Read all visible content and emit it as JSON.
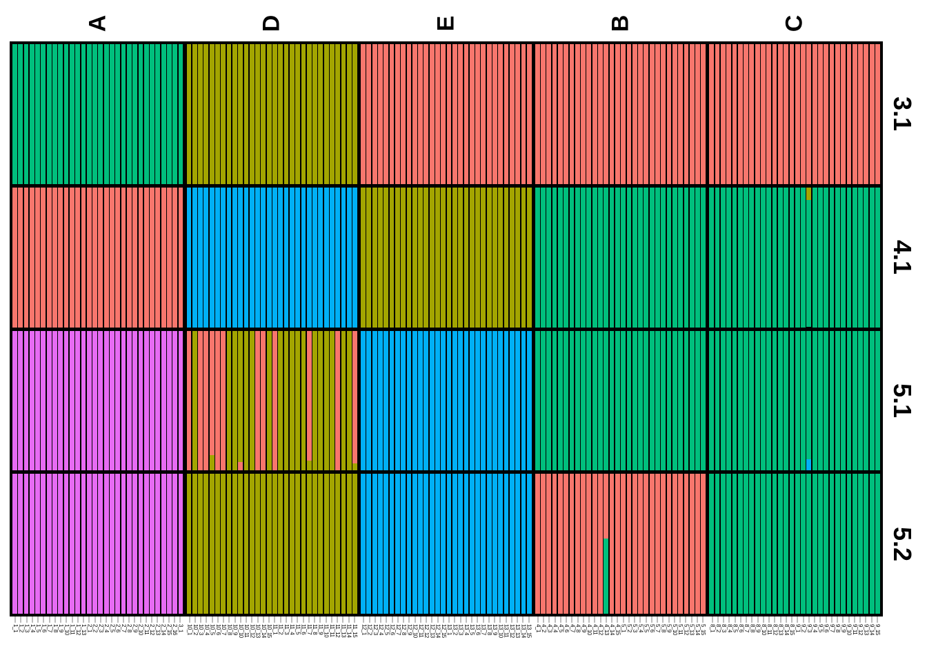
{
  "chart_data": {
    "type": "bar",
    "subtype": "stacked-admixture-structure-plot",
    "title": "",
    "groups": [
      "A",
      "D",
      "E",
      "B",
      "C"
    ],
    "runs": [
      "3.1",
      "4.1",
      "5.1",
      "5.2"
    ],
    "n_individuals_per_group": 30,
    "legend": "none",
    "palette": {
      "green": "#00BF7D",
      "salmon": "#F8766D",
      "olive": "#A3A500",
      "blue": "#00B0F6",
      "magenta": "#E76BF3"
    },
    "cells": {
      "3.1": {
        "A": "green",
        "D": "olive",
        "E": "salmon",
        "B": "salmon",
        "C": "salmon"
      },
      "4.1": {
        "A": "salmon",
        "D": "blue",
        "E": "olive",
        "B": "green",
        "C": [
          "green",
          "green",
          "green",
          "green",
          "green",
          "green",
          "green",
          "green",
          "green",
          "green",
          "green",
          "green",
          "green",
          "green",
          "green",
          "green",
          "green",
          {
            "segments": [
              [
                "olive",
                9
              ],
              [
                "green",
                91
              ]
            ]
          },
          "green",
          "green",
          "green",
          "green",
          "green",
          "green",
          "green",
          "green",
          "green",
          "green",
          "green",
          "green"
        ]
      },
      "5.1": {
        "A": "magenta",
        "D": [
          "salmon",
          "olive",
          "salmon",
          "salmon",
          {
            "segments": [
              [
                "salmon",
                89
              ],
              [
                "olive",
                11
              ]
            ]
          },
          "salmon",
          "salmon",
          "olive",
          "olive",
          {
            "segments": [
              [
                "olive",
                94
              ],
              [
                "salmon",
                6
              ]
            ]
          },
          "olive",
          "olive",
          "salmon",
          "salmon",
          "olive",
          "salmon",
          "olive",
          "olive",
          "olive",
          "olive",
          "olive",
          {
            "segments": [
              [
                "salmon",
                93
              ],
              [
                "olive",
                7
              ]
            ]
          },
          "olive",
          "olive",
          "olive",
          "olive",
          "salmon",
          "olive",
          "olive",
          {
            "segments": [
              [
                "salmon",
                95
              ],
              [
                "olive",
                5
              ]
            ]
          }
        ],
        "E": "blue",
        "B": "green",
        "C": [
          "green",
          "green",
          "green",
          "green",
          "green",
          "green",
          "green",
          "green",
          "green",
          "green",
          "green",
          "green",
          "green",
          "green",
          "green",
          "green",
          "green",
          {
            "segments": [
              [
                "green",
                92
              ],
              [
                "blue",
                8
              ]
            ]
          },
          "green",
          "green",
          "green",
          "green",
          "green",
          "green",
          "green",
          "green",
          "green",
          "green",
          "green",
          "green"
        ]
      },
      "5.2": {
        "A": "magenta",
        "D": "olive",
        "E": "blue",
        "B": [
          "salmon",
          "salmon",
          "salmon",
          "salmon",
          "salmon",
          "salmon",
          "salmon",
          "salmon",
          "salmon",
          "salmon",
          "salmon",
          "salmon",
          {
            "segments": [
              [
                "salmon",
                46
              ],
              [
                "green",
                54
              ]
            ]
          },
          "salmon",
          "salmon",
          "salmon",
          "salmon",
          "salmon",
          "salmon",
          "salmon",
          "salmon",
          "salmon",
          "salmon",
          "salmon",
          "salmon",
          "salmon",
          "salmon",
          "salmon",
          "salmon",
          "salmon"
        ],
        "C": "green"
      }
    },
    "individual_labels": {
      "A": [
        "1_1",
        "1_2",
        "1_3",
        "1_4",
        "1_5",
        "1_6",
        "1_7",
        "1_8",
        "1_9",
        "1_10",
        "1_11",
        "1_12",
        "1_13",
        "2_1",
        "2_2",
        "2_3",
        "2_4",
        "2_5",
        "2_6",
        "2_7",
        "2_8",
        "2_9",
        "2_10",
        "2_11",
        "2_12",
        "2_13",
        "2_14",
        "2_15",
        "2_16",
        "3_1"
      ],
      "D": [
        "10_1",
        "10_2",
        "10_3",
        "10_4",
        "10_5",
        "10_6",
        "10_7",
        "10_8",
        "10_9",
        "10_10",
        "10_11",
        "10_12",
        "10_13",
        "10_14",
        "10_15",
        "11_1",
        "11_2",
        "11_3",
        "11_4",
        "11_5",
        "11_6",
        "11_7",
        "11_8",
        "11_9",
        "11_10",
        "11_11",
        "11_12",
        "11_13",
        "11_14",
        "11_15"
      ],
      "E": [
        "12_1",
        "12_2",
        "12_3",
        "12_4",
        "12_5",
        "12_6",
        "12_7",
        "12_8",
        "12_9",
        "12_10",
        "12_11",
        "12_12",
        "12_13",
        "12_14",
        "12_15",
        "13_1",
        "13_2",
        "13_3",
        "13_4",
        "13_5",
        "13_6",
        "13_7",
        "13_8",
        "13_9",
        "13_10",
        "13_11",
        "13_12",
        "13_13",
        "13_14",
        "13_15"
      ],
      "B": [
        "4_1",
        "4_2",
        "4_3",
        "4_4",
        "4_5",
        "4_6",
        "4_7",
        "4_8",
        "4_9",
        "4_10",
        "4_11",
        "4_12",
        "4_13",
        "4_14",
        "4_15",
        "5_1",
        "5_2",
        "5_3",
        "5_4",
        "5_5",
        "5_6",
        "5_7",
        "5_8",
        "5_9",
        "5_10",
        "5_11",
        "5_12",
        "5_13",
        "5_14",
        "5_15"
      ],
      "C": [
        "8_1",
        "8_2",
        "8_3",
        "8_4",
        "8_5",
        "8_6",
        "8_7",
        "8_8",
        "8_9",
        "8_10",
        "8_11",
        "8_12",
        "8_13",
        "8_14",
        "8_15",
        "9_1",
        "9_2",
        "9_3",
        "9_4",
        "9_5",
        "9_6",
        "9_7",
        "9_8",
        "9_9",
        "9_10",
        "9_11",
        "9_12",
        "9_13",
        "9_14",
        "9_15"
      ]
    },
    "layout": {
      "grid": "off",
      "group_labels_position": "top, rotated 90 CCW",
      "run_labels_position": "right, rotated 90 CW",
      "tick_color": "#bdbdbd"
    }
  }
}
